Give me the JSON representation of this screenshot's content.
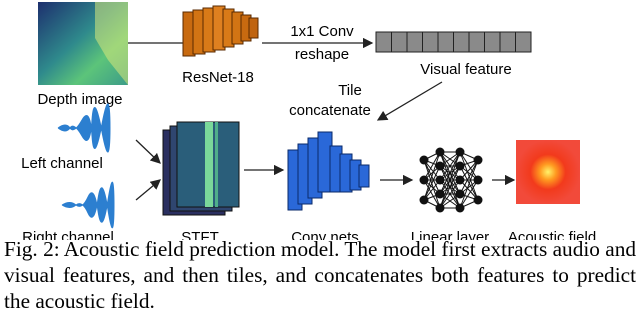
{
  "figure": {
    "labels": {
      "depth_image": "Depth image",
      "resnet": "ResNet-18",
      "conv_1x1": "1x1 Conv",
      "reshape": "reshape",
      "visual_feature": "Visual feature",
      "tile": "Tile",
      "concatenate": "concatenate",
      "left_channel": "Left channel",
      "right_channel": "Right channel",
      "stft": "STFT",
      "conv_nets": "Conv nets",
      "linear_layer": "Linear layer",
      "acoustic_field": "Acoustic field"
    },
    "caption": "Fig. 2: Acoustic field prediction model. The model first extracts audio and visual features, and then tiles, and concatenates both features to predict the acoustic field."
  }
}
